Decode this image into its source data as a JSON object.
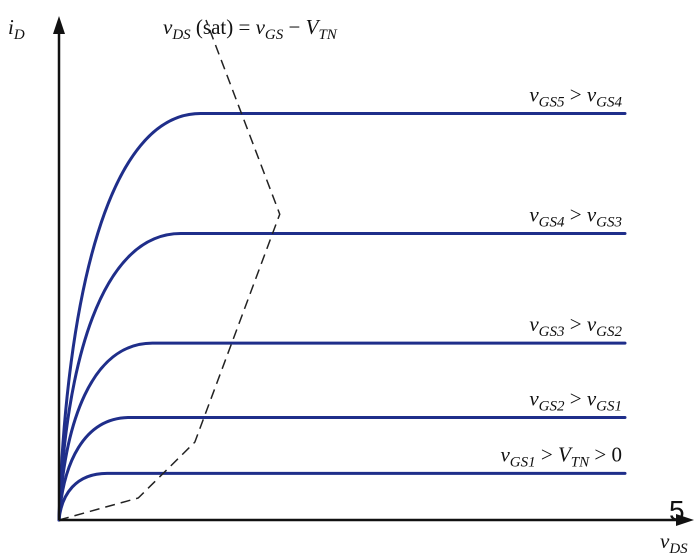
{
  "chart_data": {
    "type": "line",
    "xlabel": {
      "base": "v",
      "sub": "DS"
    },
    "ylabel": {
      "base": "i",
      "sub": "D"
    },
    "xlim": [
      0,
      100
    ],
    "ylim": [
      0,
      100
    ],
    "grid": false,
    "sat_curve": {
      "label_parts": [
        {
          "t": "v",
          "cls": ""
        },
        {
          "t": "DS",
          "cls": "sub"
        },
        {
          "t": " (sat) = ",
          "cls": "upright"
        },
        {
          "t": "v",
          "cls": ""
        },
        {
          "t": "GS",
          "cls": "sub"
        },
        {
          "t": " − ",
          "cls": "upright"
        },
        {
          "t": "V",
          "cls": ""
        },
        {
          "t": "TN",
          "cls": "sub"
        }
      ],
      "points": [
        [
          0,
          0
        ],
        [
          14,
          5
        ],
        [
          24,
          17.7
        ],
        [
          39,
          69.5
        ]
      ]
    },
    "series": [
      {
        "label_parts": [
          {
            "t": "v",
            "cls": ""
          },
          {
            "t": "GS1",
            "cls": "sub"
          },
          {
            "t": " > ",
            "cls": "upright"
          },
          {
            "t": "V",
            "cls": ""
          },
          {
            "t": "TN",
            "cls": "sub"
          },
          {
            "t": " > 0",
            "cls": "upright"
          }
        ],
        "knee": 8.5,
        "sat": 10.6,
        "x_end": 100
      },
      {
        "label_parts": [
          {
            "t": "v",
            "cls": ""
          },
          {
            "t": "GS2",
            "cls": "sub"
          },
          {
            "t": " > ",
            "cls": "upright"
          },
          {
            "t": "v",
            "cls": ""
          },
          {
            "t": "GS1",
            "cls": "sub"
          }
        ],
        "knee": 12.5,
        "sat": 23.3,
        "x_end": 100
      },
      {
        "label_parts": [
          {
            "t": "v",
            "cls": ""
          },
          {
            "t": "GS3",
            "cls": "sub"
          },
          {
            "t": " > ",
            "cls": "upright"
          },
          {
            "t": "v",
            "cls": ""
          },
          {
            "t": "GS2",
            "cls": "sub"
          }
        ],
        "knee": 16.5,
        "sat": 40.2,
        "x_end": 100
      },
      {
        "label_parts": [
          {
            "t": "v",
            "cls": ""
          },
          {
            "t": "GS4",
            "cls": "sub"
          },
          {
            "t": " > ",
            "cls": "upright"
          },
          {
            "t": "v",
            "cls": ""
          },
          {
            "t": "GS3",
            "cls": "sub"
          }
        ],
        "knee": 21.5,
        "sat": 65.1,
        "x_end": 100
      },
      {
        "label_parts": [
          {
            "t": "v",
            "cls": ""
          },
          {
            "t": "GS5",
            "cls": "sub"
          },
          {
            "t": " > ",
            "cls": "upright"
          },
          {
            "t": "v",
            "cls": ""
          },
          {
            "t": "GS4",
            "cls": "sub"
          }
        ],
        "knee": 25,
        "sat": 92.4,
        "x_end": 100
      }
    ]
  },
  "page_number": "5",
  "colors": {
    "curve": "#1f2e8a",
    "axis": "#111111"
  }
}
